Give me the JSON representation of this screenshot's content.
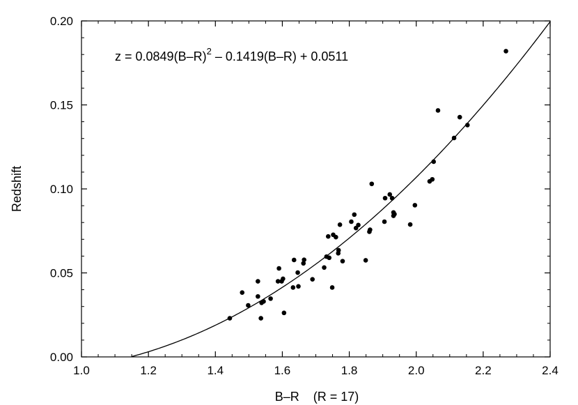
{
  "chart_data": {
    "type": "scatter",
    "xlabel": "B–R    (R = 17)",
    "ylabel": "Redshift",
    "xlim": [
      1.0,
      2.4
    ],
    "ylim": [
      0.0,
      0.2
    ],
    "xticks": [
      1.0,
      1.2,
      1.4,
      1.6,
      1.8,
      2.0,
      2.2,
      2.4
    ],
    "xtick_labels": [
      "1.0",
      "1.2",
      "1.4",
      "1.6",
      "1.8",
      "2.0",
      "2.2",
      "2.4"
    ],
    "yticks": [
      0.0,
      0.05,
      0.1,
      0.15,
      0.2
    ],
    "ytick_labels": [
      "0.00",
      "0.05",
      "0.10",
      "0.15",
      "0.20"
    ],
    "grid": false,
    "annotation": {
      "prefix": "z = 0.0849(B–R)",
      "superscript": "2",
      "suffix": " – 0.1419(B–R) + 0.0511"
    },
    "fit": {
      "a": 0.0849,
      "b": -0.1419,
      "c": 0.0511
    },
    "points": [
      [
        1.443,
        0.023
      ],
      [
        1.48,
        0.0383
      ],
      [
        1.498,
        0.0307
      ],
      [
        1.527,
        0.045
      ],
      [
        1.527,
        0.036
      ],
      [
        1.536,
        0.023
      ],
      [
        1.538,
        0.0322
      ],
      [
        1.544,
        0.033
      ],
      [
        1.565,
        0.0347
      ],
      [
        1.587,
        0.045
      ],
      [
        1.59,
        0.0527
      ],
      [
        1.598,
        0.045
      ],
      [
        1.602,
        0.0465
      ],
      [
        1.605,
        0.0262
      ],
      [
        1.632,
        0.0413
      ],
      [
        1.635,
        0.0577
      ],
      [
        1.646,
        0.0502
      ],
      [
        1.648,
        0.042
      ],
      [
        1.663,
        0.0557
      ],
      [
        1.665,
        0.0578
      ],
      [
        1.69,
        0.0462
      ],
      [
        1.725,
        0.0532
      ],
      [
        1.732,
        0.0597
      ],
      [
        1.737,
        0.0717
      ],
      [
        1.74,
        0.059
      ],
      [
        1.749,
        0.0413
      ],
      [
        1.752,
        0.0727
      ],
      [
        1.76,
        0.0713
      ],
      [
        1.767,
        0.0617
      ],
      [
        1.768,
        0.0635
      ],
      [
        1.772,
        0.0787
      ],
      [
        1.78,
        0.057
      ],
      [
        1.806,
        0.0805
      ],
      [
        1.815,
        0.0847
      ],
      [
        1.82,
        0.0767
      ],
      [
        1.827,
        0.0785
      ],
      [
        1.849,
        0.0575
      ],
      [
        1.86,
        0.0745
      ],
      [
        1.862,
        0.0757
      ],
      [
        1.867,
        0.103
      ],
      [
        1.905,
        0.0805
      ],
      [
        1.907,
        0.0945
      ],
      [
        1.921,
        0.0967
      ],
      [
        1.928,
        0.0945
      ],
      [
        1.932,
        0.086
      ],
      [
        1.932,
        0.084
      ],
      [
        1.935,
        0.085
      ],
      [
        1.982,
        0.0788
      ],
      [
        1.996,
        0.0903
      ],
      [
        2.04,
        0.1045
      ],
      [
        2.048,
        0.1057
      ],
      [
        2.052,
        0.1162
      ],
      [
        2.065,
        0.1467
      ],
      [
        2.113,
        0.1303
      ],
      [
        2.13,
        0.1427
      ],
      [
        2.153,
        0.138
      ],
      [
        2.268,
        0.182
      ]
    ]
  }
}
